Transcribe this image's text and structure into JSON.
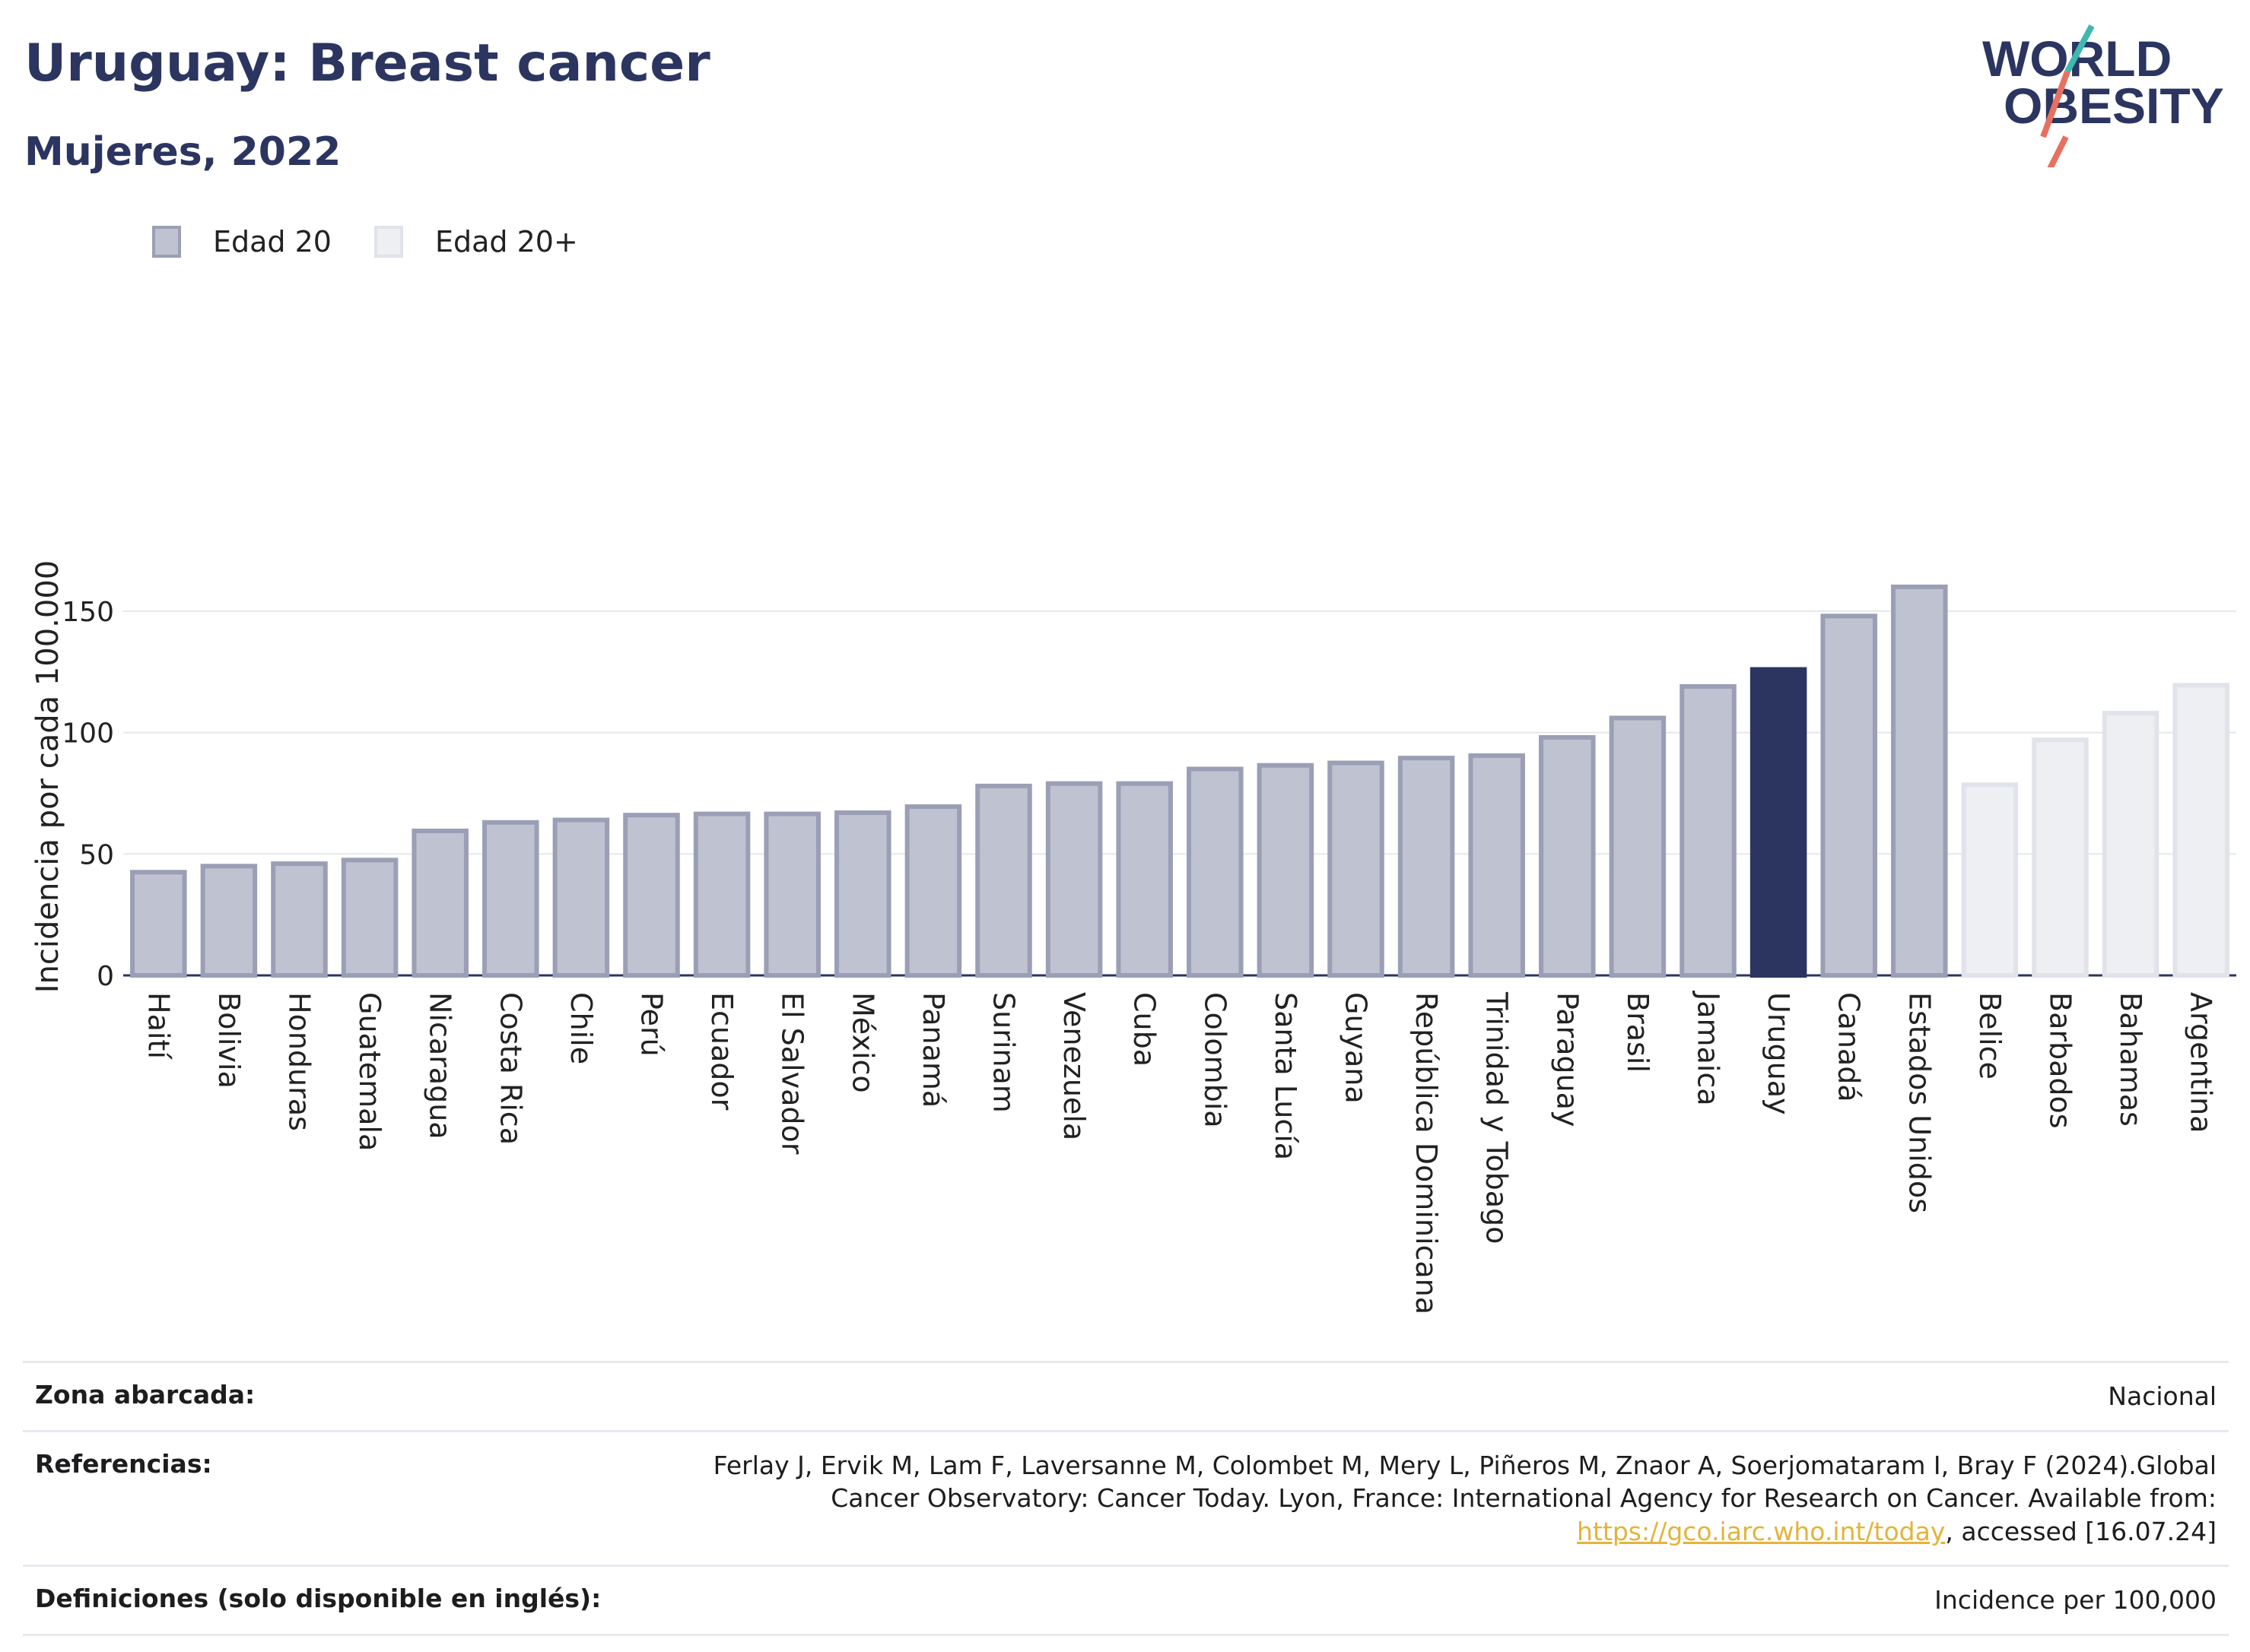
{
  "title": "Uruguay: Breast cancer",
  "subtitle": "Mujeres, 2022",
  "logo": {
    "line1": "WORLD",
    "line2": "OBESITY"
  },
  "colors": {
    "navy": "#2b3560",
    "bar_fill": "#bfc2d0",
    "bar_stroke": "#9a9fb5",
    "light_fill": "#eeeff3",
    "light_stroke": "#e1e3ea",
    "accent_teal": "#3fb8b0",
    "accent_coral": "#e8705f",
    "link": "#e3b43b"
  },
  "legend": [
    {
      "label": "Edad 20",
      "color": "#bfc2d0",
      "stroke": "#9a9fb5"
    },
    {
      "label": "Edad 20+",
      "color": "#eeeff3",
      "stroke": "#e1e3ea"
    }
  ],
  "chart_data": {
    "type": "bar",
    "ylabel": "Incidencia por cada 100.000",
    "xlabel": "",
    "ylim": [
      0,
      170
    ],
    "yticks": [
      0,
      50,
      100,
      150
    ],
    "grid": true,
    "legend_position": "top-left",
    "categories": [
      "Haití",
      "Bolivia",
      "Honduras",
      "Guatemala",
      "Nicaragua",
      "Costa Rica",
      "Chile",
      "Perú",
      "Ecuador",
      "El Salvador",
      "México",
      "Panamá",
      "Surinam",
      "Venezuela",
      "Cuba",
      "Colombia",
      "Santa Lucía",
      "Guyana",
      "República Dominicana",
      "Trinidad y Tobago",
      "Paraguay",
      "Brasil",
      "Jamaica",
      "Uruguay",
      "Canadá",
      "Estados Unidos",
      "Belice",
      "Barbados",
      "Bahamas",
      "Argentina"
    ],
    "values": [
      42.5,
      45,
      46,
      47.5,
      59.5,
      63,
      64,
      66,
      66.5,
      66.5,
      67,
      69.5,
      78,
      79,
      79,
      85,
      86.5,
      87.5,
      89.5,
      90.5,
      98,
      106,
      119,
      126,
      148,
      160,
      78.5,
      97,
      108,
      119.5
    ],
    "group": [
      "Edad 20",
      "Edad 20",
      "Edad 20",
      "Edad 20",
      "Edad 20",
      "Edad 20",
      "Edad 20",
      "Edad 20",
      "Edad 20",
      "Edad 20",
      "Edad 20",
      "Edad 20",
      "Edad 20",
      "Edad 20",
      "Edad 20",
      "Edad 20",
      "Edad 20",
      "Edad 20",
      "Edad 20",
      "Edad 20",
      "Edad 20",
      "Edad 20",
      "Edad 20",
      "Edad 20",
      "Edad 20",
      "Edad 20",
      "Edad 20+",
      "Edad 20+",
      "Edad 20+",
      "Edad 20+"
    ],
    "highlight": "Uruguay"
  },
  "meta": {
    "zona_label": "Zona abarcada:",
    "zona_value": "Nacional",
    "ref_label": "Referencias:",
    "ref_text_1": "Ferlay J, Ervik M, Lam F, Laversanne M, Colombet M, Mery L, Piñeros M, Znaor A, Soerjomataram I, Bray F (2024).Global Cancer Observatory: Cancer Today. Lyon, France: International Agency for Research on Cancer. Available from: ",
    "ref_link": "https://gco.iarc.who.int/today",
    "ref_text_2": ", accessed [16.07.24]",
    "def_label": "Definiciones (solo disponible en inglés):",
    "def_value": "Incidence per 100,000"
  }
}
